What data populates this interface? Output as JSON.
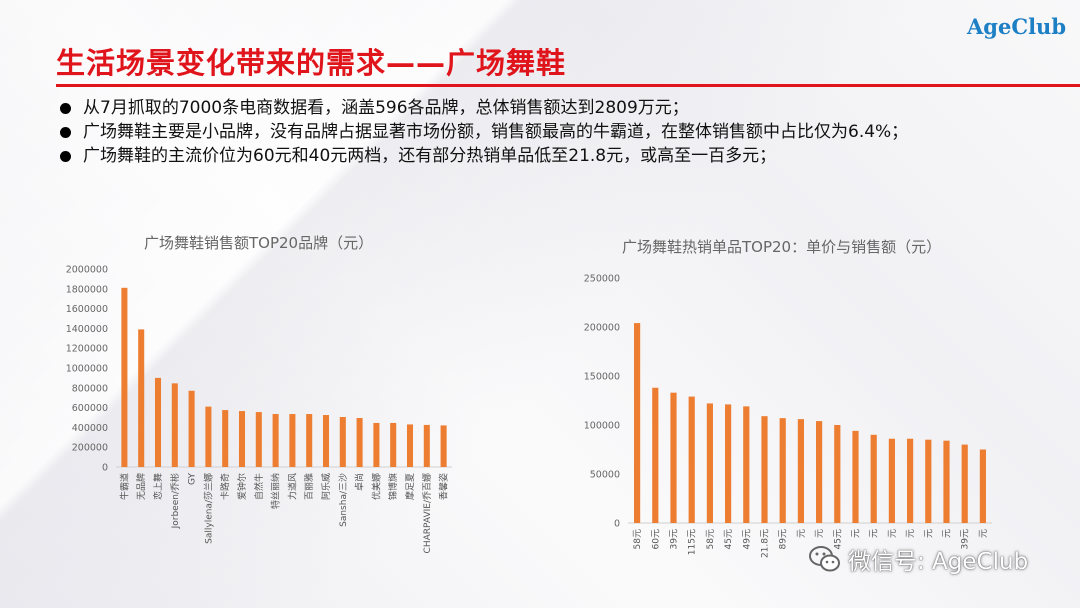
{
  "logo": "AgeClub",
  "title": "生活场景变化带来的需求——广场舞鞋",
  "bullets": [
    "从7月抓取的7000条电商数据看，涵盖596各品牌，总体销售额达到2809万元；",
    "广场舞鞋主要是小品牌，没有品牌占据显著市场份额，销售额最高的牛霸道，在整体销售额中占比仅为6.4%；",
    "广场舞鞋的主流价位为60元和40元两档，还有部分热销单品低至21.8元，或高至一百多元；"
  ],
  "watermark": {
    "text": "微信号: AgeClub",
    "icon": "wechat-icon"
  },
  "chart_data": [
    {
      "type": "bar",
      "title": "广场舞鞋销售额TOP20品牌（元）",
      "xlabel": "",
      "ylabel": "",
      "ylim": [
        0,
        2000000
      ],
      "yticks": [
        0,
        200000,
        400000,
        600000,
        800000,
        1000000,
        1200000,
        1400000,
        1600000,
        1800000,
        2000000
      ],
      "categories": [
        "牛霸道",
        "无品牌",
        "恋上舞",
        "Jorbeen/乔彬",
        "GY",
        "Sallylena/莎兰娜",
        "卡路奇",
        "爱钟尔",
        "自然牛",
        "特丝丽纳",
        "力道风",
        "百丽雅",
        "阿乐威",
        "Sansha/三沙",
        "卓尚",
        "优美娜",
        "锦博旗",
        "摩足夏",
        "CHARPAVIE/乔百娜",
        "香馨姿"
      ],
      "values": [
        1810000,
        1390000,
        900000,
        845000,
        770000,
        610000,
        575000,
        565000,
        555000,
        535000,
        535000,
        535000,
        525000,
        505000,
        495000,
        445000,
        445000,
        430000,
        425000,
        420000
      ],
      "color": "#ed7d31",
      "grid": false,
      "legend": "none"
    },
    {
      "type": "bar",
      "title": "广场舞鞋热销单品TOP20：单价与销售额（元）",
      "xlabel": "",
      "ylabel": "",
      "ylim": [
        0,
        250000
      ],
      "yticks": [
        0,
        50000,
        100000,
        150000,
        200000,
        250000
      ],
      "categories": [
        "58元",
        "60元",
        "39元",
        "115元",
        "58元",
        "45元",
        "49元",
        "21.8元",
        "89元",
        "元",
        "元",
        "45元",
        "元",
        "元",
        "元",
        "元",
        "元",
        "元",
        "39元",
        "元"
      ],
      "values": [
        204000,
        138000,
        133000,
        129000,
        122000,
        121000,
        119000,
        109000,
        107000,
        106000,
        104000,
        100000,
        94000,
        90000,
        86000,
        86000,
        85000,
        84000,
        80000,
        75000
      ],
      "color": "#ed7d31",
      "grid": false,
      "legend": "none"
    }
  ]
}
